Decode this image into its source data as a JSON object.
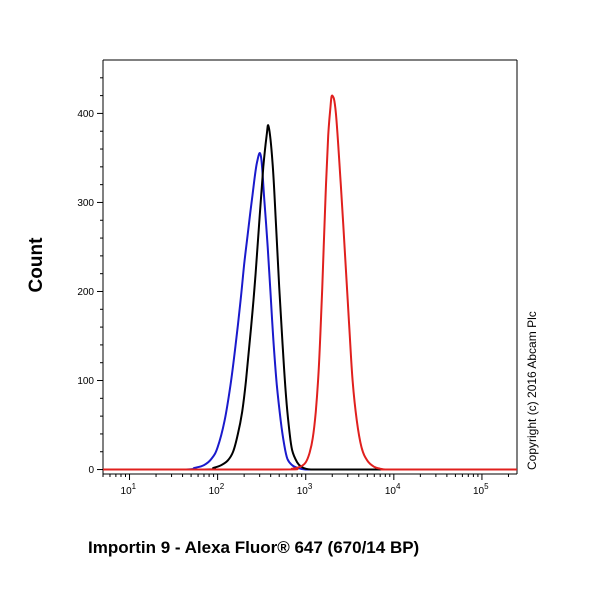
{
  "chart_data": {
    "type": "line",
    "title": "",
    "xlabel": "Importin 9 - Alexa Fluor® 647 (670/14 BP)",
    "ylabel": "Count",
    "x_scale": "log",
    "xlim": [
      5,
      250000
    ],
    "ylim": [
      -5,
      460
    ],
    "x_ticks": [
      {
        "value": 10,
        "base": "10",
        "exp": "1"
      },
      {
        "value": 100,
        "base": "10",
        "exp": "2"
      },
      {
        "value": 1000,
        "base": "10",
        "exp": "3"
      },
      {
        "value": 10000,
        "base": "10",
        "exp": "4"
      },
      {
        "value": 100000,
        "base": "10",
        "exp": "5"
      }
    ],
    "y_ticks": [
      {
        "value": 0,
        "label": "0"
      },
      {
        "value": 100,
        "label": "100"
      },
      {
        "value": 200,
        "label": "200"
      },
      {
        "value": 300,
        "label": "300"
      },
      {
        "value": 400,
        "label": "400"
      }
    ],
    "series": [
      {
        "color": "#1a1acc",
        "x": [
          5,
          40,
          55,
          70,
          85,
          100,
          120,
          140,
          160,
          180,
          200,
          220,
          250,
          280,
          310,
          340,
          370,
          400,
          430,
          470,
          520,
          570,
          620,
          700,
          800,
          1000,
          1500,
          3000,
          250000
        ],
        "y": [
          0,
          0,
          2,
          5,
          12,
          25,
          55,
          95,
          140,
          185,
          230,
          265,
          310,
          345,
          352,
          300,
          250,
          195,
          145,
          95,
          55,
          28,
          12,
          5,
          2,
          0,
          0,
          0,
          0
        ]
      },
      {
        "color": "#000000",
        "x": [
          5,
          70,
          90,
          110,
          130,
          150,
          170,
          190,
          210,
          240,
          270,
          300,
          330,
          360,
          380,
          420,
          460,
          500,
          550,
          600,
          650,
          700,
          800,
          900,
          1000,
          1200,
          2000,
          250000
        ],
        "y": [
          0,
          0,
          2,
          5,
          10,
          20,
          40,
          65,
          100,
          160,
          220,
          285,
          340,
          375,
          385,
          345,
          275,
          205,
          135,
          80,
          45,
          22,
          8,
          3,
          1,
          0,
          0,
          0
        ]
      },
      {
        "color": "#e0201e",
        "x": [
          5,
          500,
          700,
          800,
          900,
          1000,
          1100,
          1200,
          1300,
          1400,
          1500,
          1600,
          1700,
          1800,
          1900,
          2000,
          2200,
          2500,
          2800,
          3100,
          3400,
          3800,
          4300,
          5000,
          6000,
          7000,
          8000,
          10000,
          250000
        ],
        "y": [
          0,
          0,
          1,
          2,
          4,
          8,
          18,
          35,
          65,
          110,
          175,
          250,
          320,
          375,
          405,
          420,
          400,
          320,
          240,
          165,
          100,
          55,
          25,
          10,
          3,
          1,
          0,
          0,
          0
        ]
      }
    ]
  },
  "copyright": "Copyright (c) 2016 Abcam Plc"
}
